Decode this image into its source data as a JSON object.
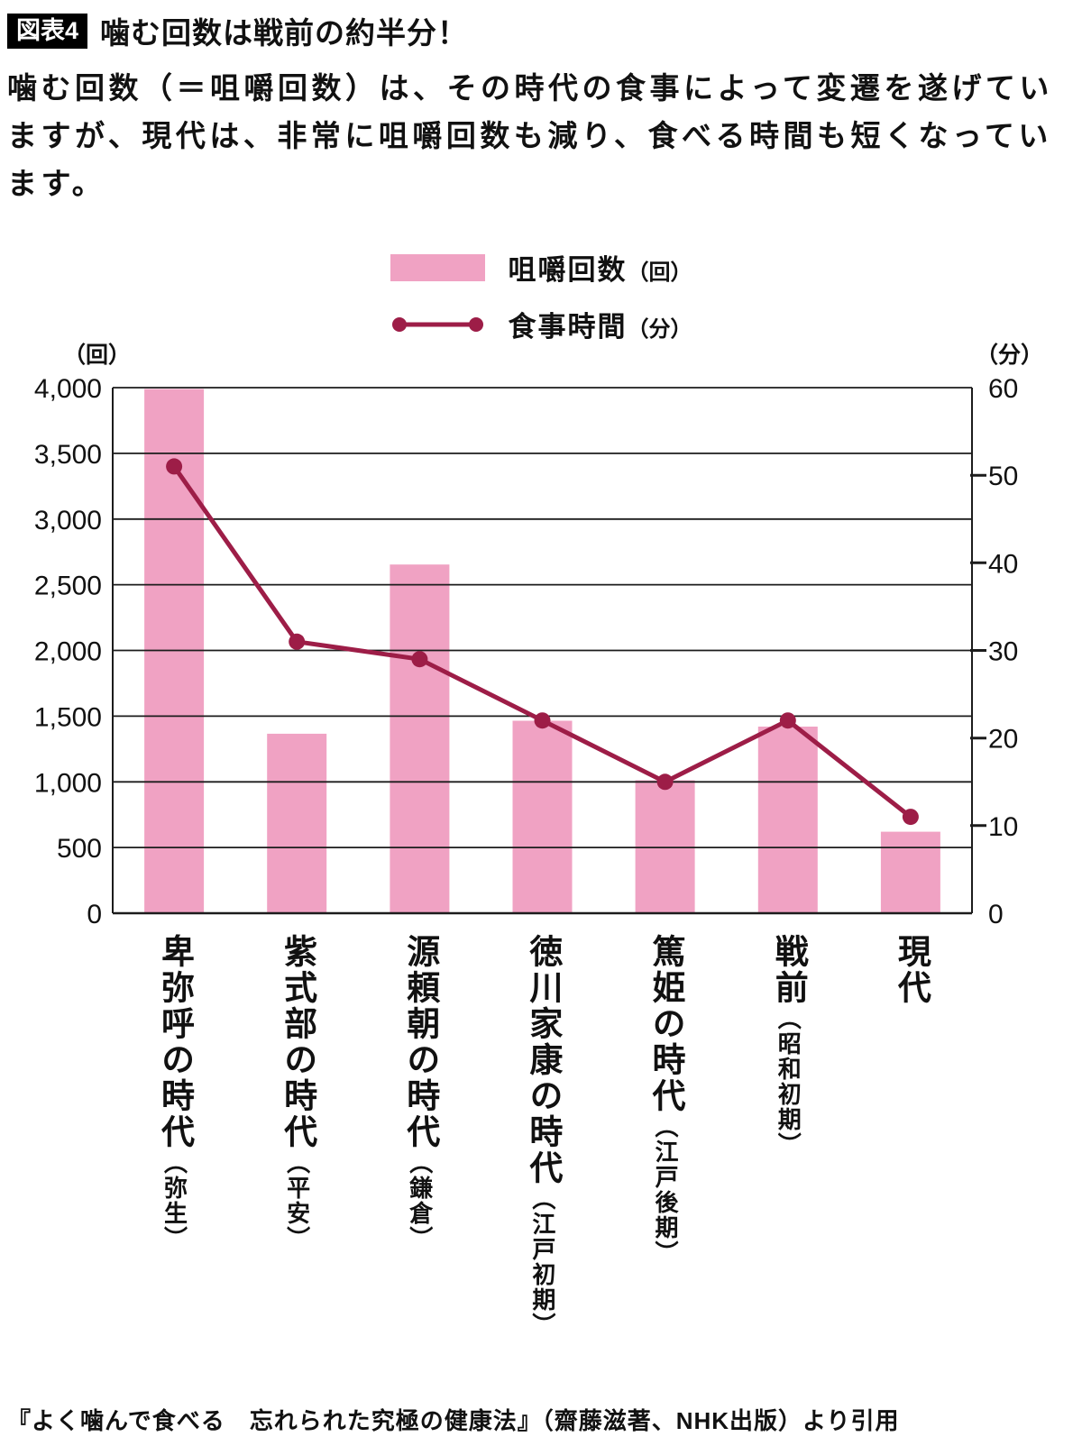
{
  "header": {
    "badge": "図表4",
    "title": "噛む回数は戦前の約半分！"
  },
  "description": "噛む回数（＝咀嚼回数）は、その時代の食事によって変遷を遂げていますが、現代は、非常に咀嚼回数も減り、食べる時間も短くなっています。",
  "legend": {
    "bar": {
      "label": "咀嚼回数",
      "unit": "（回）"
    },
    "line": {
      "label": "食事時間",
      "unit": "（分）"
    }
  },
  "chart_data": {
    "type": "bar",
    "title": "噛む回数は戦前の約半分！",
    "categories": [
      {
        "name": "卑弥呼の時代",
        "era": "（弥生）"
      },
      {
        "name": "紫式部の時代",
        "era": "（平安）"
      },
      {
        "name": "源頼朝の時代",
        "era": "（鎌倉）"
      },
      {
        "name": "徳川家康の時代",
        "era": "（江戸初期）"
      },
      {
        "name": "篤姫の時代",
        "era": "（江戸後期）"
      },
      {
        "name": "戦前",
        "era": "（昭和初期）"
      },
      {
        "name": "現代",
        "era": ""
      }
    ],
    "series": [
      {
        "name": "咀嚼回数",
        "unit": "回",
        "type": "bar",
        "axis": "left",
        "values": [
          3990,
          1366,
          2654,
          1465,
          1012,
          1420,
          620
        ]
      },
      {
        "name": "食事時間",
        "unit": "分",
        "type": "line",
        "axis": "right",
        "values": [
          51,
          31,
          29,
          22,
          15,
          22,
          11
        ]
      }
    ],
    "left_axis": {
      "unit": "（回）",
      "min": 0,
      "max": 4000,
      "step": 500,
      "ticks": [
        "4,000",
        "3,500",
        "3,000",
        "2,500",
        "2,000",
        "1,500",
        "1,000",
        "500",
        "0"
      ]
    },
    "right_axis": {
      "unit": "（分）",
      "min": 0,
      "max": 60,
      "step": 10,
      "ticks": [
        "60",
        "50",
        "40",
        "30",
        "20",
        "10",
        "0"
      ]
    },
    "colors": {
      "bar": "#F0A2C3",
      "line": "#9D1D47"
    },
    "grid": true,
    "legend_position": "top"
  },
  "footer": {
    "citation": "『よく噛んで食べる　忘れられた究極の健康法』（齋藤滋著、NHK出版）より引用"
  }
}
